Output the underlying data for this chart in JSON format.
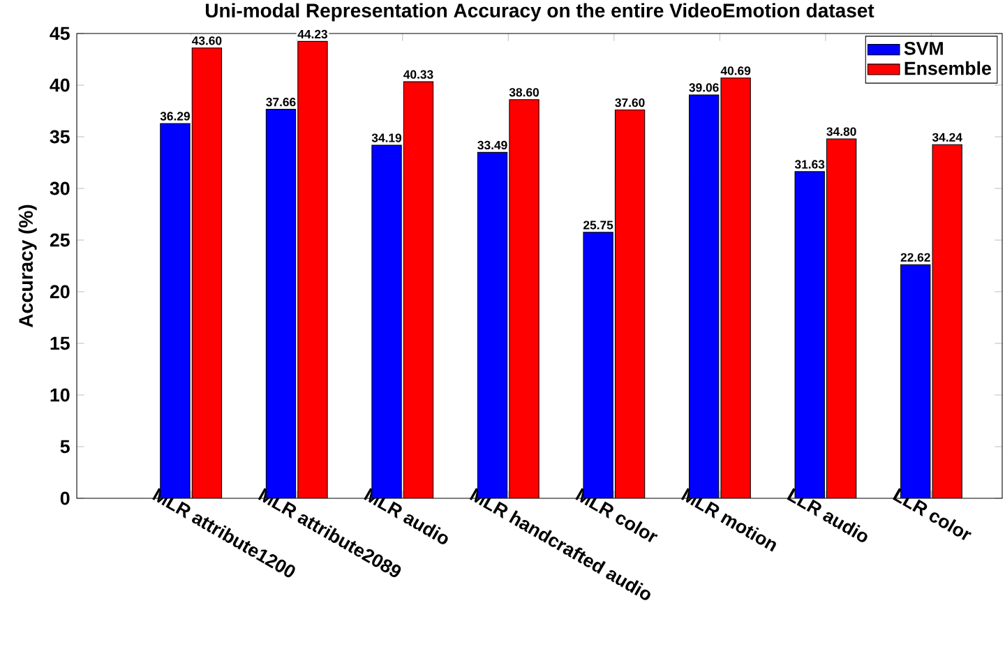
{
  "chart_data": {
    "type": "bar",
    "title": "Uni-modal Representation Accuracy on the entire VideoEmotion dataset",
    "ylabel": "Accuracy (%)",
    "categories": [
      "MLR attribute1200",
      "MLR attribute2089",
      "MLR audio",
      "MLR handcrafted audio",
      "MLR color",
      "MLR motion",
      "LLR audio",
      "LLR color"
    ],
    "series": [
      {
        "name": "SVM",
        "color": "#0000ff",
        "values": [
          36.29,
          37.66,
          34.19,
          33.49,
          25.75,
          39.06,
          31.63,
          22.62
        ],
        "value_labels": [
          "36.29",
          "37.66",
          "34.19",
          "33.49",
          "25.75",
          "39.06",
          "31.63",
          "22.62"
        ]
      },
      {
        "name": "Ensemble",
        "color": "#ff0000",
        "values": [
          43.6,
          44.23,
          40.33,
          38.6,
          37.6,
          40.69,
          34.8,
          34.24
        ],
        "value_labels": [
          "43.60",
          "44.23",
          "40.33",
          "38.60",
          "37.60",
          "40.69",
          "34.80",
          "34.24"
        ]
      }
    ],
    "ylim": [
      0,
      45
    ],
    "yticks": [
      0,
      5,
      10,
      15,
      20,
      25,
      30,
      35,
      40,
      45
    ],
    "grid": false,
    "legend": "top right"
  }
}
